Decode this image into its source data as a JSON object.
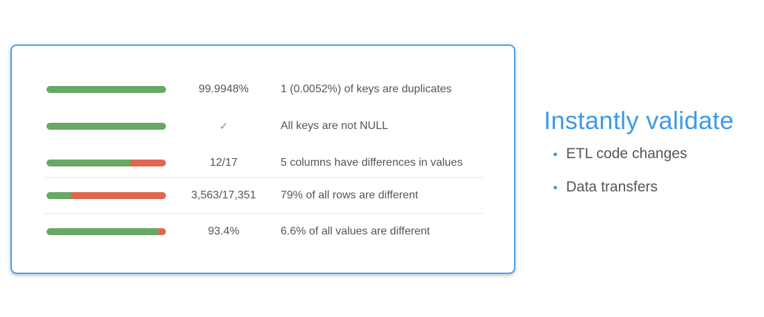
{
  "colors": {
    "accent": "#3d9ae6",
    "card_border": "#4a9fe8",
    "pass": "#67a864",
    "fail": "#e0674f",
    "text": "#555555"
  },
  "results": [
    {
      "value": "99.9948%",
      "description": "1 (0.0052%) of keys are duplicates",
      "pass_fraction": 0.99995,
      "check": false
    },
    {
      "value": "✓",
      "description": "All keys are not NULL",
      "pass_fraction": 1.0,
      "check": true,
      "icon": "checkmark-icon"
    },
    {
      "value": "12/17",
      "description": "5 columns have differences in values",
      "pass_fraction": 0.70588,
      "check": false
    },
    {
      "value": "3,563/17,351",
      "description": "79% of all rows are different",
      "pass_fraction": 0.20535,
      "check": false
    },
    {
      "value": "93.4%",
      "description": "6.6% of all values are different",
      "pass_fraction": 0.934,
      "check": false
    }
  ],
  "side": {
    "title": "Instantly validate",
    "bullets": [
      "ETL code changes",
      "Data transfers"
    ]
  }
}
